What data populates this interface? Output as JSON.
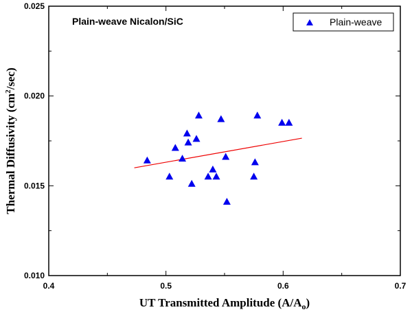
{
  "chart_data": {
    "type": "scatter",
    "annotation": "Plain-weave Nicalon/SiC",
    "xlabel_main": "UT Transmitted Amplitude (A/A",
    "xlabel_sub": "o",
    "xlabel_end": ")",
    "ylabel_main": "Thermal Diffusivity (cm",
    "ylabel_sup": "2",
    "ylabel_end": "/sec)",
    "xlim": [
      0.4,
      0.7
    ],
    "ylim": [
      0.01,
      0.025
    ],
    "x_ticks": [
      0.4,
      0.5,
      0.6,
      0.7
    ],
    "x_tick_labels": [
      "0.4",
      "0.5",
      "0.6",
      "0.7"
    ],
    "y_ticks": [
      0.01,
      0.015,
      0.02,
      0.025
    ],
    "y_tick_labels": [
      "0.010",
      "0.015",
      "0.020",
      "0.025"
    ],
    "legend": {
      "position": "top-right",
      "entries": [
        "Plain-weave"
      ]
    },
    "series": [
      {
        "name": "Plain-weave",
        "marker": "triangle",
        "color": "#0000ee",
        "points": [
          {
            "x": 0.484,
            "y": 0.0164
          },
          {
            "x": 0.503,
            "y": 0.0155
          },
          {
            "x": 0.508,
            "y": 0.0171
          },
          {
            "x": 0.514,
            "y": 0.0165
          },
          {
            "x": 0.518,
            "y": 0.0179
          },
          {
            "x": 0.519,
            "y": 0.0174
          },
          {
            "x": 0.522,
            "y": 0.0151
          },
          {
            "x": 0.526,
            "y": 0.0176
          },
          {
            "x": 0.528,
            "y": 0.0189
          },
          {
            "x": 0.536,
            "y": 0.0155
          },
          {
            "x": 0.54,
            "y": 0.0159
          },
          {
            "x": 0.543,
            "y": 0.0155
          },
          {
            "x": 0.547,
            "y": 0.0187
          },
          {
            "x": 0.551,
            "y": 0.0166
          },
          {
            "x": 0.552,
            "y": 0.0141
          },
          {
            "x": 0.575,
            "y": 0.0155
          },
          {
            "x": 0.576,
            "y": 0.0163
          },
          {
            "x": 0.578,
            "y": 0.0189
          },
          {
            "x": 0.599,
            "y": 0.0185
          },
          {
            "x": 0.605,
            "y": 0.0185
          }
        ]
      }
    ],
    "trendline": {
      "color": "#ee0000",
      "points": [
        {
          "x": 0.473,
          "y": 0.016
        },
        {
          "x": 0.616,
          "y": 0.01765
        }
      ]
    }
  }
}
